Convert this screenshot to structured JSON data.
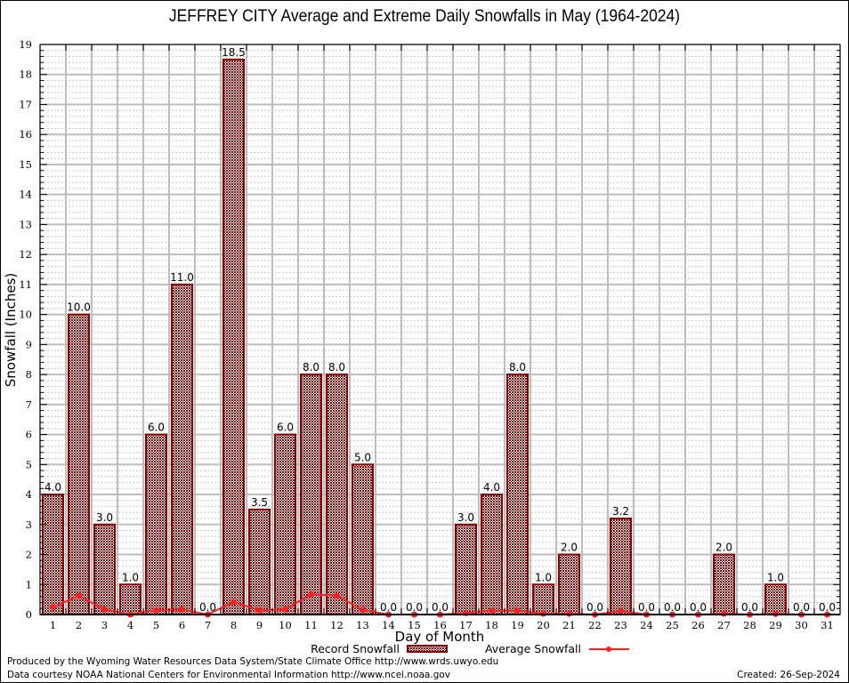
{
  "chart_data": {
    "type": "bar",
    "title": "JEFFREY CITY Average and Extreme Daily Snowfalls in May (1964-2024)",
    "xlabel": "Day of Month",
    "ylabel": "Snowfall (Inches)",
    "ylim": [
      0,
      19
    ],
    "grid": true,
    "categories": [
      "1",
      "2",
      "3",
      "4",
      "5",
      "6",
      "7",
      "8",
      "9",
      "10",
      "11",
      "12",
      "13",
      "14",
      "15",
      "16",
      "17",
      "18",
      "19",
      "20",
      "21",
      "22",
      "23",
      "24",
      "25",
      "26",
      "27",
      "28",
      "29",
      "30",
      "31"
    ],
    "yticks": [
      "0",
      "1",
      "2",
      "3",
      "4",
      "5",
      "6",
      "7",
      "8",
      "9",
      "10",
      "11",
      "12",
      "13",
      "14",
      "15",
      "16",
      "17",
      "18",
      "19"
    ],
    "series": [
      {
        "name": "Record Snowfall",
        "type": "bar",
        "color": "#8b0000",
        "values": [
          4.0,
          10.0,
          3.0,
          1.0,
          6.0,
          11.0,
          0.0,
          18.5,
          3.5,
          6.0,
          8.0,
          8.0,
          5.0,
          0.0,
          0.0,
          0.0,
          3.0,
          4.0,
          8.0,
          1.0,
          2.0,
          0.0,
          3.2,
          0.0,
          0.0,
          0.0,
          2.0,
          0.0,
          1.0,
          0.0,
          0.0
        ],
        "labels": [
          "4.0",
          "10.0",
          "3.0",
          "1.0",
          "6.0",
          "11.0",
          "0.0",
          "18.5",
          "3.5",
          "6.0",
          "8.0",
          "8.0",
          "5.0",
          "0.0",
          "0.0",
          "0.0",
          "3.0",
          "4.0",
          "8.0",
          "1.0",
          "2.0",
          "0.0",
          "3.2",
          "0.0",
          "0.0",
          "0.0",
          "2.0",
          "0.0",
          "1.0",
          "0.0",
          "0.0"
        ]
      },
      {
        "name": "Average Snowfall",
        "type": "line",
        "color": "#ff2020",
        "values": [
          0.25,
          0.62,
          0.17,
          0.0,
          0.15,
          0.17,
          0.0,
          0.42,
          0.14,
          0.17,
          0.68,
          0.63,
          0.15,
          0.0,
          0.0,
          0.0,
          0.05,
          0.13,
          0.13,
          0.03,
          0.03,
          0.0,
          0.12,
          0.0,
          0.0,
          0.0,
          0.03,
          0.0,
          0.02,
          0.0,
          0.0
        ]
      }
    ],
    "legend": "bottom"
  },
  "footer": {
    "produced": "Produced by the Wyoming Water Resources Data System/State Climate Office http://www.wrds.uwyo.edu",
    "courtesy": "Data courtesy NOAA National Centers for Environmental Information http://www.ncei.noaa.gov",
    "created": "Created: 26-Sep-2024"
  }
}
